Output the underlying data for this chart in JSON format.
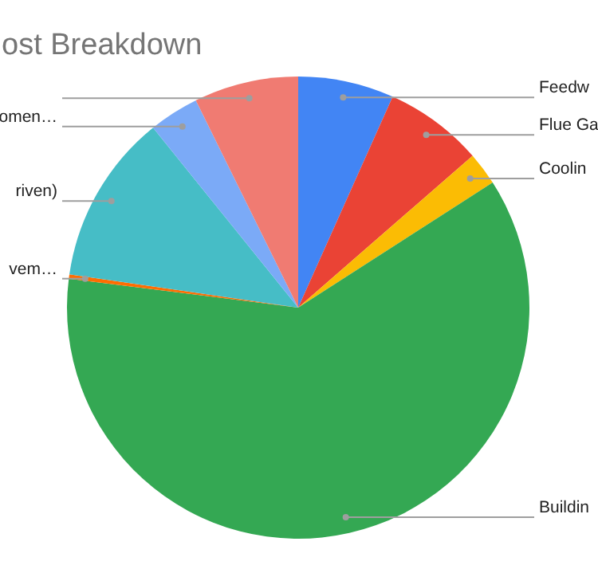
{
  "chart_data": {
    "type": "pie",
    "title": "ost Breakdown",
    "categories": [
      "Feedw",
      "Flue Ga",
      "Coolin",
      "Buildin",
      "vem…",
      "riven)",
      "omen…",
      null
    ],
    "values": [
      6.7,
      6.9,
      2.3,
      61.1,
      0.3,
      11.9,
      3.5,
      7.3
    ],
    "colors": [
      "#4285f4",
      "#ea4335",
      "#fbbc04",
      "#34a853",
      "#ff6d01",
      "#46bdc6",
      "#7baaf7",
      "#f07b72"
    ]
  }
}
